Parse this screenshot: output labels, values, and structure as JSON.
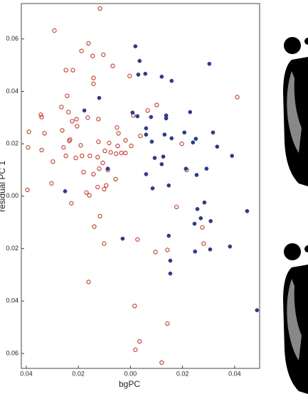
{
  "chart_data": {
    "type": "scatter",
    "x_label": "bgPC",
    "y_label": "residual PC 1",
    "xlim": [
      -0.0419,
      0.0496
    ],
    "ylim": [
      -0.0657,
      0.0735
    ],
    "xticks": [
      {
        "value": -0.04,
        "label": "0.04"
      },
      {
        "value": -0.02,
        "label": "0.02"
      },
      {
        "value": 0,
        "label": "0.00"
      },
      0.02,
      0.04
    ],
    "yticks": [
      {
        "value": -0.06,
        "label": "0.06"
      },
      {
        "value": -0.04,
        "label": "0.04"
      },
      {
        "value": -0.02,
        "label": "0.02"
      },
      {
        "value": 0,
        "label": "0.00"
      },
      0.02,
      0.04,
      0.06
    ],
    "series": [
      {
        "color": "#c0392b",
        "marker": "open",
        "x": [
          -0.0117,
          -0.0292,
          -0.0161,
          -0.0145,
          -0.0188,
          -0.0104,
          -0.0068,
          -0.0248,
          -0.0221,
          -0.0142,
          -0.0142,
          -0.0003,
          -0.0243,
          -0.0265,
          -0.0344,
          -0.0238,
          -0.0207,
          -0.0164,
          -0.0341,
          -0.0224,
          0.0101,
          0.0066,
          0.0011,
          -0.0123,
          -0.0052,
          -0.0262,
          -0.0205,
          -0.039,
          -0.033,
          -0.0046,
          -0.0019,
          0.0038,
          -0.0235,
          -0.0232,
          -0.0123,
          -0.0082,
          -0.0393,
          -0.0191,
          -0.0049,
          0.0003,
          -0.0341,
          -0.0257,
          -0.0098,
          -0.0156,
          -0.0076,
          -0.0055,
          -0.0186,
          -0.0035,
          -0.0019,
          -0.021,
          -0.0126,
          -0.0106,
          -0.0298,
          -0.0248,
          -0.012,
          -0.018,
          -0.0142,
          -0.0303,
          -0.0087,
          -0.0057,
          -0.0093,
          -0.0101,
          -0.0126,
          -0.0169,
          -0.0158,
          -0.0396,
          -0.0227,
          -0.0117,
          -0.0139,
          -0.0101,
          0.0027,
          0.0096,
          0.0142,
          0.0281,
          0.0276,
          0.0216,
          0.0197,
          0.0177,
          0.041,
          -0.0161,
          0.0016,
          0.0035,
          0.0019,
          0.0142,
          0.012
        ],
        "values": [
          0.0716,
          0.0632,
          0.0583,
          0.0535,
          0.0554,
          0.054,
          0.0497,
          0.0481,
          0.0481,
          0.0451,
          0.0429,
          0.0459,
          0.0383,
          0.034,
          0.0311,
          0.0321,
          0.0294,
          0.03,
          0.0302,
          0.0286,
          0.0348,
          0.0327,
          0.0308,
          0.0294,
          0.0262,
          0.0251,
          0.0267,
          0.0246,
          0.024,
          0.024,
          0.0213,
          0.023,
          0.0211,
          0.0216,
          0.0208,
          0.0203,
          0.0186,
          0.0194,
          0.0192,
          0.0192,
          0.0176,
          0.0186,
          0.0173,
          0.0154,
          0.0167,
          0.0162,
          0.0154,
          0.0165,
          0.0165,
          0.0146,
          0.0149,
          0.0127,
          0.0132,
          0.0154,
          0.0105,
          0.0092,
          0.0084,
          0.0049,
          0.01,
          0.0065,
          0.0041,
          0.0027,
          0.0035,
          0.0014,
          0.0003,
          0.0024,
          -0.0027,
          -0.0076,
          -0.0116,
          -0.0181,
          -0.0165,
          -0.0213,
          -0.0205,
          -0.0181,
          -0.0119,
          0.01,
          0.02,
          -0.0041,
          0.0378,
          -0.0327,
          -0.0419,
          -0.0554,
          -0.0586,
          -0.0486,
          -0.0635
        ]
      },
      {
        "color": "#2e3a8c",
        "marker": "filled",
        "x": [
          0.0019,
          0.0035,
          0.0057,
          0.003,
          0.012,
          0.0158,
          0.0303,
          -0.012,
          -0.0177,
          0.0008,
          0.0027,
          0.0079,
          0.0137,
          0.0137,
          0.0229,
          0.006,
          0.006,
          0.0131,
          0.0158,
          0.0251,
          0.0207,
          0.024,
          0.0317,
          0.0333,
          0.039,
          0.0082,
          0.0126,
          0.0093,
          0.012,
          0.0213,
          0.006,
          0.0292,
          0.0254,
          -0.0087,
          0.0147,
          0.0085,
          -0.0251,
          0.0284,
          0.0257,
          0.027,
          0.0308,
          0.0246,
          0.0448,
          0.0147,
          0.0248,
          0.0382,
          0.0306,
          0.0153,
          -0.003,
          0.0153,
          0.0486
        ],
        "values": [
          0.0572,
          0.0516,
          0.0467,
          0.0464,
          0.0456,
          0.044,
          0.0505,
          0.0375,
          0.0327,
          0.0319,
          0.0305,
          0.0302,
          0.0308,
          0.0297,
          0.0321,
          0.0259,
          0.0235,
          0.0235,
          0.0221,
          0.0219,
          0.0243,
          0.0205,
          0.0243,
          0.0189,
          0.0154,
          0.0208,
          0.0151,
          0.0146,
          0.0122,
          0.0105,
          0.0084,
          0.0105,
          0.0081,
          0.0105,
          0.0041,
          0.003,
          0.0019,
          -0.0024,
          -0.0049,
          -0.0084,
          -0.0095,
          -0.0105,
          -0.0057,
          -0.0151,
          -0.0211,
          -0.0192,
          -0.0203,
          -0.0246,
          -0.0162,
          -0.0295,
          -0.0435
        ]
      }
    ]
  }
}
